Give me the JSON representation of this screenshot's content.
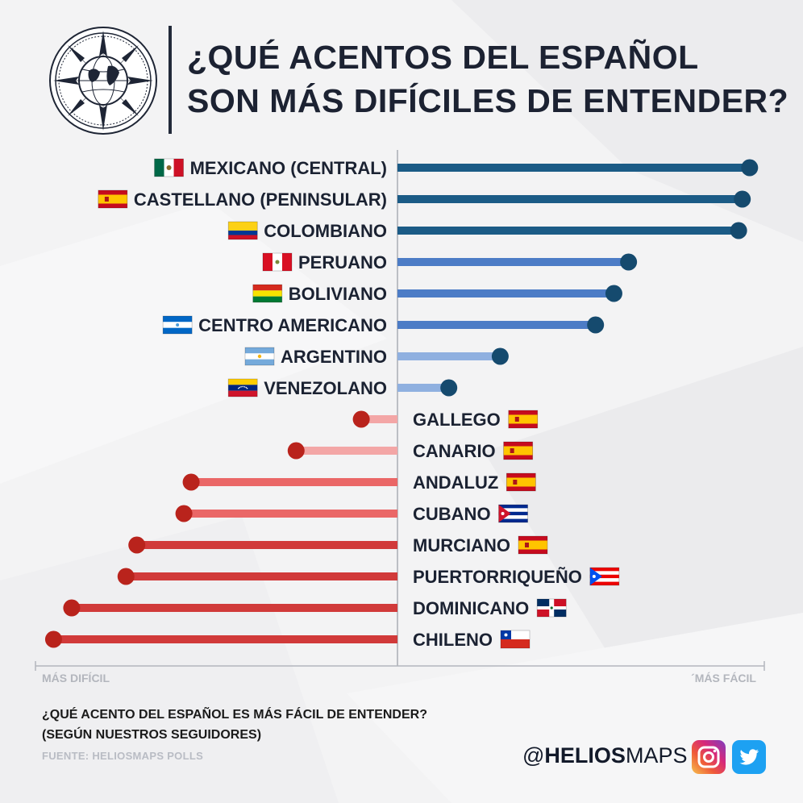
{
  "title": {
    "line1": "¿QUÉ ACENTOS DEL ESPAÑOL",
    "line2": "SON MÁS DIFÍCILES DE ENTENDER?"
  },
  "chart_data": {
    "type": "lollipop",
    "title": "¿QUÉ ACENTOS DEL ESPAÑOL SON MÁS DIFÍCILES DE ENTENDER?",
    "xlabel_left": "MÁS DIFÍCIL",
    "xlabel_right": "´MÁS FÁCIL",
    "xlim": [
      -100,
      100
    ],
    "unit": "relative score (estimated)",
    "categories": [
      "MEXICANO (CENTRAL)",
      "CASTELLANO (PENINSULAR)",
      "COLOMBIANO",
      "PERUANO",
      "BOLIVIANO",
      "CENTRO AMERICANO",
      "ARGENTINO",
      "VENEZOLANO",
      "GALLEGO",
      "CANARIO",
      "ANDALUZ",
      "CUBANO",
      "MURCIANO",
      "PUERTORRIQUEÑO",
      "DOMINICANO",
      "CHILENO"
    ],
    "values": [
      96,
      94,
      93,
      63,
      59,
      54,
      28,
      14,
      -10,
      -28,
      -57,
      -59,
      -72,
      -75,
      -90,
      -95
    ],
    "flags": [
      "mx",
      "es",
      "co",
      "pe",
      "bo",
      "ni",
      "ar",
      "ve",
      "es",
      "es",
      "es",
      "cu",
      "es",
      "pr",
      "do",
      "cl"
    ],
    "colors": {
      "easy_dark": "#1b5b86",
      "easy_mid": "#4c7cc6",
      "easy_light": "#8fb0e0",
      "hard_light": "#f3a6a6",
      "hard_mid": "#ea6767",
      "hard_dark": "#d13a3a",
      "dot_easy": "#154a6e",
      "dot_hard": "#b9231c"
    }
  },
  "footer": {
    "question_line1": "¿QUÉ ACENTO DEL ESPAÑOL ES MÁS FÁCIL DE ENTENDER?",
    "question_line2": "(SEGÚN NUESTROS SEGUIDORES)",
    "source": "FUENTE: HELIOSMAPS POLLS",
    "handle_at": "@",
    "handle_bold": "HELIOS",
    "handle_rest": "MAPS"
  },
  "icons": {
    "emblem": "compass-globe-icon",
    "social": [
      "instagram-icon",
      "twitter-icon"
    ]
  }
}
